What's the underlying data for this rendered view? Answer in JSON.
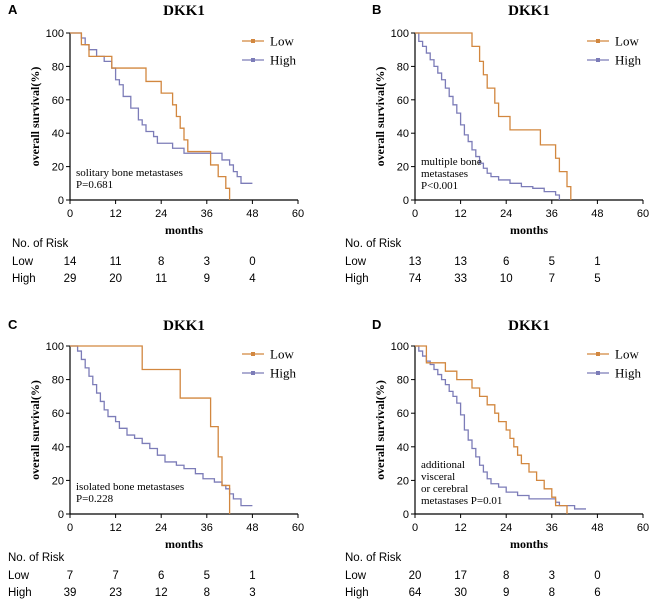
{
  "colors": {
    "low": "#D2873F",
    "high": "#7C7CB8",
    "axis": "#000000"
  },
  "chart_data": [
    {
      "panel": "A",
      "type": "line",
      "title": "DKK1",
      "xlabel": "months",
      "ylabel": "overall survival(%)",
      "xlim": [
        0,
        60
      ],
      "ylim": [
        0,
        100
      ],
      "xticks": [
        "0",
        "12",
        "24",
        "36",
        "48",
        "60"
      ],
      "yticks": [
        "0",
        "20",
        "40",
        "60",
        "80",
        "100"
      ],
      "annotation": [
        "solitary bone metastases",
        "P=0.681"
      ],
      "series": [
        {
          "name": "Low",
          "points": [
            [
              0,
              100
            ],
            [
              3,
              93
            ],
            [
              5,
              86
            ],
            [
              10,
              86
            ],
            [
              11,
              79
            ],
            [
              17,
              79
            ],
            [
              20,
              71
            ],
            [
              23,
              71
            ],
            [
              24,
              64
            ],
            [
              27,
              57
            ],
            [
              28,
              50
            ],
            [
              29,
              43
            ],
            [
              30,
              36
            ],
            [
              31,
              29
            ],
            [
              36,
              29
            ],
            [
              37,
              21
            ],
            [
              39,
              14
            ],
            [
              41,
              7
            ],
            [
              42,
              0
            ]
          ]
        },
        {
          "name": "High",
          "points": [
            [
              0,
              100
            ],
            [
              3,
              97
            ],
            [
              4,
              93
            ],
            [
              5,
              90
            ],
            [
              7,
              86
            ],
            [
              9,
              83
            ],
            [
              11,
              79
            ],
            [
              12,
              72
            ],
            [
              13,
              69
            ],
            [
              14,
              62
            ],
            [
              16,
              55
            ],
            [
              18,
              48
            ],
            [
              19,
              45
            ],
            [
              20,
              41
            ],
            [
              22,
              38
            ],
            [
              23,
              34
            ],
            [
              27,
              31
            ],
            [
              29,
              31
            ],
            [
              30,
              28
            ],
            [
              39,
              28
            ],
            [
              40,
              24
            ],
            [
              42,
              21
            ],
            [
              43,
              17
            ],
            [
              44,
              14
            ],
            [
              45,
              10
            ],
            [
              48,
              10
            ]
          ]
        }
      ],
      "risk": {
        "header": "No. of Risk",
        "rows": [
          {
            "label": "Low",
            "values": [
              "14",
              "11",
              "8",
              "3",
              "0"
            ]
          },
          {
            "label": "High",
            "values": [
              "29",
              "20",
              "11",
              "9",
              "4"
            ]
          }
        ]
      }
    },
    {
      "panel": "B",
      "type": "line",
      "title": "DKK1",
      "xlabel": "months",
      "ylabel": "overall survival(%)",
      "xlim": [
        0,
        60
      ],
      "ylim": [
        0,
        100
      ],
      "xticks": [
        "0",
        "12",
        "24",
        "36",
        "48",
        "60"
      ],
      "yticks": [
        "0",
        "20",
        "40",
        "60",
        "80",
        "100"
      ],
      "annotation": [
        "multiple bone",
        "metastases",
        "P<0.001"
      ],
      "series": [
        {
          "name": "Low",
          "points": [
            [
              0,
              100
            ],
            [
              14,
              100
            ],
            [
              15,
              92
            ],
            [
              17,
              83
            ],
            [
              18,
              75
            ],
            [
              19,
              67
            ],
            [
              21,
              58
            ],
            [
              22,
              50
            ],
            [
              25,
              42
            ],
            [
              32,
              42
            ],
            [
              33,
              33
            ],
            [
              36,
              33
            ],
            [
              37,
              25
            ],
            [
              38,
              17
            ],
            [
              40,
              8
            ],
            [
              41,
              0
            ]
          ]
        },
        {
          "name": "High",
          "points": [
            [
              0,
              100
            ],
            [
              1,
              95
            ],
            [
              2,
              92
            ],
            [
              3,
              88
            ],
            [
              4,
              84
            ],
            [
              5,
              80
            ],
            [
              6,
              76
            ],
            [
              7,
              72
            ],
            [
              8,
              67
            ],
            [
              9,
              62
            ],
            [
              10,
              57
            ],
            [
              11,
              52
            ],
            [
              12,
              45
            ],
            [
              13,
              39
            ],
            [
              14,
              35
            ],
            [
              15,
              30
            ],
            [
              16,
              26
            ],
            [
              17,
              22
            ],
            [
              18,
              19
            ],
            [
              19,
              16
            ],
            [
              20,
              14
            ],
            [
              22,
              12
            ],
            [
              25,
              10
            ],
            [
              28,
              8
            ],
            [
              31,
              7
            ],
            [
              34,
              5
            ],
            [
              37,
              3
            ],
            [
              38,
              0
            ]
          ]
        }
      ],
      "risk": {
        "header": "No. of Risk",
        "rows": [
          {
            "label": "Low",
            "values": [
              "13",
              "13",
              "6",
              "5",
              "1"
            ]
          },
          {
            "label": "High",
            "values": [
              "74",
              "33",
              "10",
              "7",
              "5"
            ]
          }
        ]
      }
    },
    {
      "panel": "C",
      "type": "line",
      "title": "DKK1",
      "xlabel": "months",
      "ylabel": "overall survival(%)",
      "xlim": [
        0,
        60
      ],
      "ylim": [
        0,
        100
      ],
      "xticks": [
        "0",
        "12",
        "24",
        "36",
        "48",
        "60"
      ],
      "yticks": [
        "0",
        "20",
        "40",
        "60",
        "80",
        "100"
      ],
      "annotation": [
        "isolated bone metastases",
        "P=0.228"
      ],
      "series": [
        {
          "name": "Low",
          "points": [
            [
              0,
              100
            ],
            [
              18,
              100
            ],
            [
              19,
              86
            ],
            [
              28,
              86
            ],
            [
              29,
              69
            ],
            [
              36,
              69
            ],
            [
              37,
              52
            ],
            [
              38,
              52
            ],
            [
              39,
              34
            ],
            [
              40,
              17
            ],
            [
              42,
              0
            ]
          ]
        },
        {
          "name": "High",
          "points": [
            [
              0,
              100
            ],
            [
              2,
              97
            ],
            [
              3,
              92
            ],
            [
              4,
              87
            ],
            [
              5,
              82
            ],
            [
              6,
              77
            ],
            [
              7,
              72
            ],
            [
              8,
              67
            ],
            [
              9,
              62
            ],
            [
              10,
              58
            ],
            [
              12,
              55
            ],
            [
              13,
              51
            ],
            [
              15,
              47
            ],
            [
              17,
              45
            ],
            [
              19,
              42
            ],
            [
              21,
              39
            ],
            [
              23,
              35
            ],
            [
              25,
              31
            ],
            [
              28,
              29
            ],
            [
              30,
              27
            ],
            [
              33,
              24
            ],
            [
              35,
              21
            ],
            [
              38,
              19
            ],
            [
              40,
              17
            ],
            [
              41,
              15
            ],
            [
              42,
              12
            ],
            [
              43,
              9
            ],
            [
              45,
              5
            ],
            [
              48,
              5
            ]
          ]
        }
      ],
      "risk": {
        "header": "No. of Risk",
        "rows": [
          {
            "label": "Low",
            "values": [
              "7",
              "7",
              "6",
              "5",
              "1"
            ]
          },
          {
            "label": "High",
            "values": [
              "39",
              "23",
              "12",
              "8",
              "3"
            ]
          }
        ]
      }
    },
    {
      "panel": "D",
      "type": "line",
      "title": "DKK1",
      "xlabel": "months",
      "ylabel": "overall survival(%)",
      "xlim": [
        0,
        60
      ],
      "ylim": [
        0,
        100
      ],
      "xticks": [
        "0",
        "12",
        "24",
        "36",
        "48",
        "60"
      ],
      "yticks": [
        "0",
        "20",
        "40",
        "60",
        "80",
        "100"
      ],
      "annotation": [
        "additional",
        "visceral",
        "or cerebral",
        "metastases P=0.01"
      ],
      "series": [
        {
          "name": "Low",
          "points": [
            [
              0,
              100
            ],
            [
              2,
              100
            ],
            [
              3,
              90
            ],
            [
              6,
              90
            ],
            [
              8,
              85
            ],
            [
              11,
              80
            ],
            [
              15,
              75
            ],
            [
              17,
              70
            ],
            [
              19,
              65
            ],
            [
              21,
              60
            ],
            [
              22,
              55
            ],
            [
              24,
              50
            ],
            [
              25,
              45
            ],
            [
              26,
              40
            ],
            [
              27,
              35
            ],
            [
              28,
              30
            ],
            [
              30,
              25
            ],
            [
              32,
              20
            ],
            [
              34,
              15
            ],
            [
              36,
              10
            ],
            [
              37,
              5
            ],
            [
              40,
              0
            ]
          ]
        },
        {
          "name": "High",
          "points": [
            [
              0,
              100
            ],
            [
              1,
              97
            ],
            [
              2,
              94
            ],
            [
              3,
              91
            ],
            [
              4,
              89
            ],
            [
              5,
              86
            ],
            [
              6,
              83
            ],
            [
              7,
              80
            ],
            [
              8,
              77
            ],
            [
              9,
              73
            ],
            [
              10,
              70
            ],
            [
              11,
              66
            ],
            [
              12,
              59
            ],
            [
              13,
              50
            ],
            [
              14,
              44
            ],
            [
              15,
              39
            ],
            [
              16,
              34
            ],
            [
              17,
              29
            ],
            [
              18,
              25
            ],
            [
              19,
              21
            ],
            [
              20,
              18
            ],
            [
              22,
              16
            ],
            [
              24,
              13
            ],
            [
              27,
              11
            ],
            [
              30,
              9
            ],
            [
              36,
              9
            ],
            [
              37,
              7
            ],
            [
              38,
              5
            ],
            [
              42,
              3
            ],
            [
              45,
              3
            ]
          ]
        }
      ],
      "risk": {
        "header": "No. of Risk",
        "rows": [
          {
            "label": "Low",
            "values": [
              "20",
              "17",
              "8",
              "3",
              "0"
            ]
          },
          {
            "label": "High",
            "values": [
              "64",
              "30",
              "9",
              "8",
              "6"
            ]
          }
        ]
      }
    }
  ]
}
